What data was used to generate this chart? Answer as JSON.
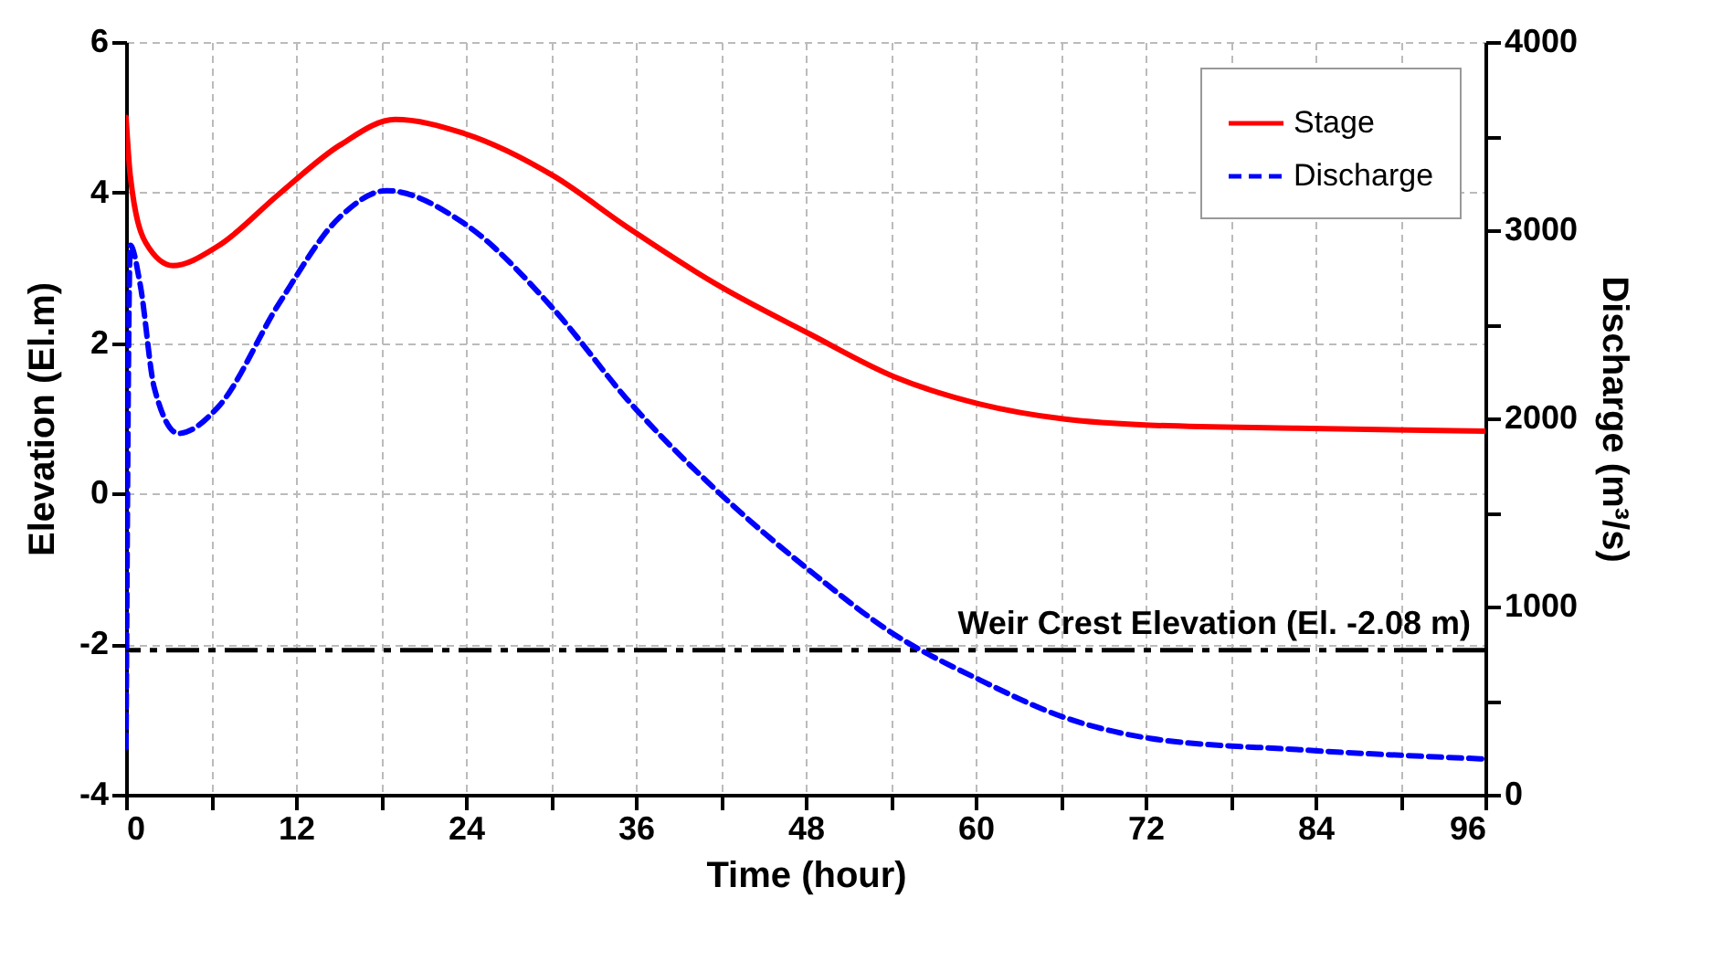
{
  "chart_data": {
    "type": "line",
    "xlabel": "Time (hour)",
    "ylabel": "Elevation (El.m)",
    "y2label": "Discharge (m³/s)",
    "xlim": [
      0,
      96
    ],
    "xticks": [
      0,
      {
        "value": 6,
        "label": null
      },
      12,
      {
        "value": 18,
        "label": null
      },
      24,
      {
        "value": 30,
        "label": null
      },
      36,
      {
        "value": 42,
        "label": null
      },
      48,
      {
        "value": 54,
        "label": null
      },
      60,
      {
        "value": 66,
        "label": null
      },
      72,
      {
        "value": 78,
        "label": null
      },
      84,
      {
        "value": 90,
        "label": null
      },
      96
    ],
    "ylim": [
      -4,
      6
    ],
    "yticks": [
      -4,
      -2,
      0,
      2,
      4,
      6
    ],
    "y2lim": [
      0,
      4000
    ],
    "y2ticks": [
      0,
      {
        "value": 500,
        "label": null
      },
      1000,
      {
        "value": 1500,
        "label": null
      },
      2000,
      {
        "value": 2500,
        "label": null
      },
      3000,
      {
        "value": 3500,
        "label": null
      },
      4000
    ],
    "grid": true,
    "legend": "top right",
    "series": [
      {
        "name": "Stage",
        "color": "#ff0000",
        "line_style": "solid",
        "x": [
          0,
          0.3,
          1.4,
          3.3,
          6.5,
          10.8,
          15.1,
          19,
          23.8,
          30.2,
          35.4,
          41.8,
          48.3,
          54.3,
          60.3,
          66.3,
          72.3,
          82.7,
          96
        ],
        "values": [
          5.0,
          4.22,
          3.33,
          3.03,
          3.29,
          3.98,
          4.63,
          4.97,
          4.79,
          4.22,
          3.54,
          2.77,
          2.12,
          1.55,
          1.19,
          0.99,
          0.91,
          0.87,
          0.83
        ]
      },
      {
        "name": "Discharge",
        "color": "#0000ff",
        "line_style": "dashed",
        "axis": "y2",
        "x": [
          0,
          0.3,
          1.0,
          2.0,
          3.7,
          6.5,
          10.8,
          15.1,
          18.4,
          23.8,
          30.2,
          35.4,
          41.8,
          48.3,
          54.3,
          60.3,
          66.3,
          72.3,
          82.7,
          96
        ],
        "values": [
          250,
          2920,
          2710,
          2160,
          1920,
          2060,
          2610,
          3070,
          3210,
          3040,
          2580,
          2100,
          1610,
          1190,
          850,
          610,
          410,
          300,
          240,
          190
        ]
      }
    ],
    "ref_lines": [
      {
        "axis": "y",
        "value": -2.08,
        "label": "Weir Crest Elevation (El. -2.08 m)",
        "color": "#000000",
        "line_style": "dashed"
      }
    ]
  }
}
